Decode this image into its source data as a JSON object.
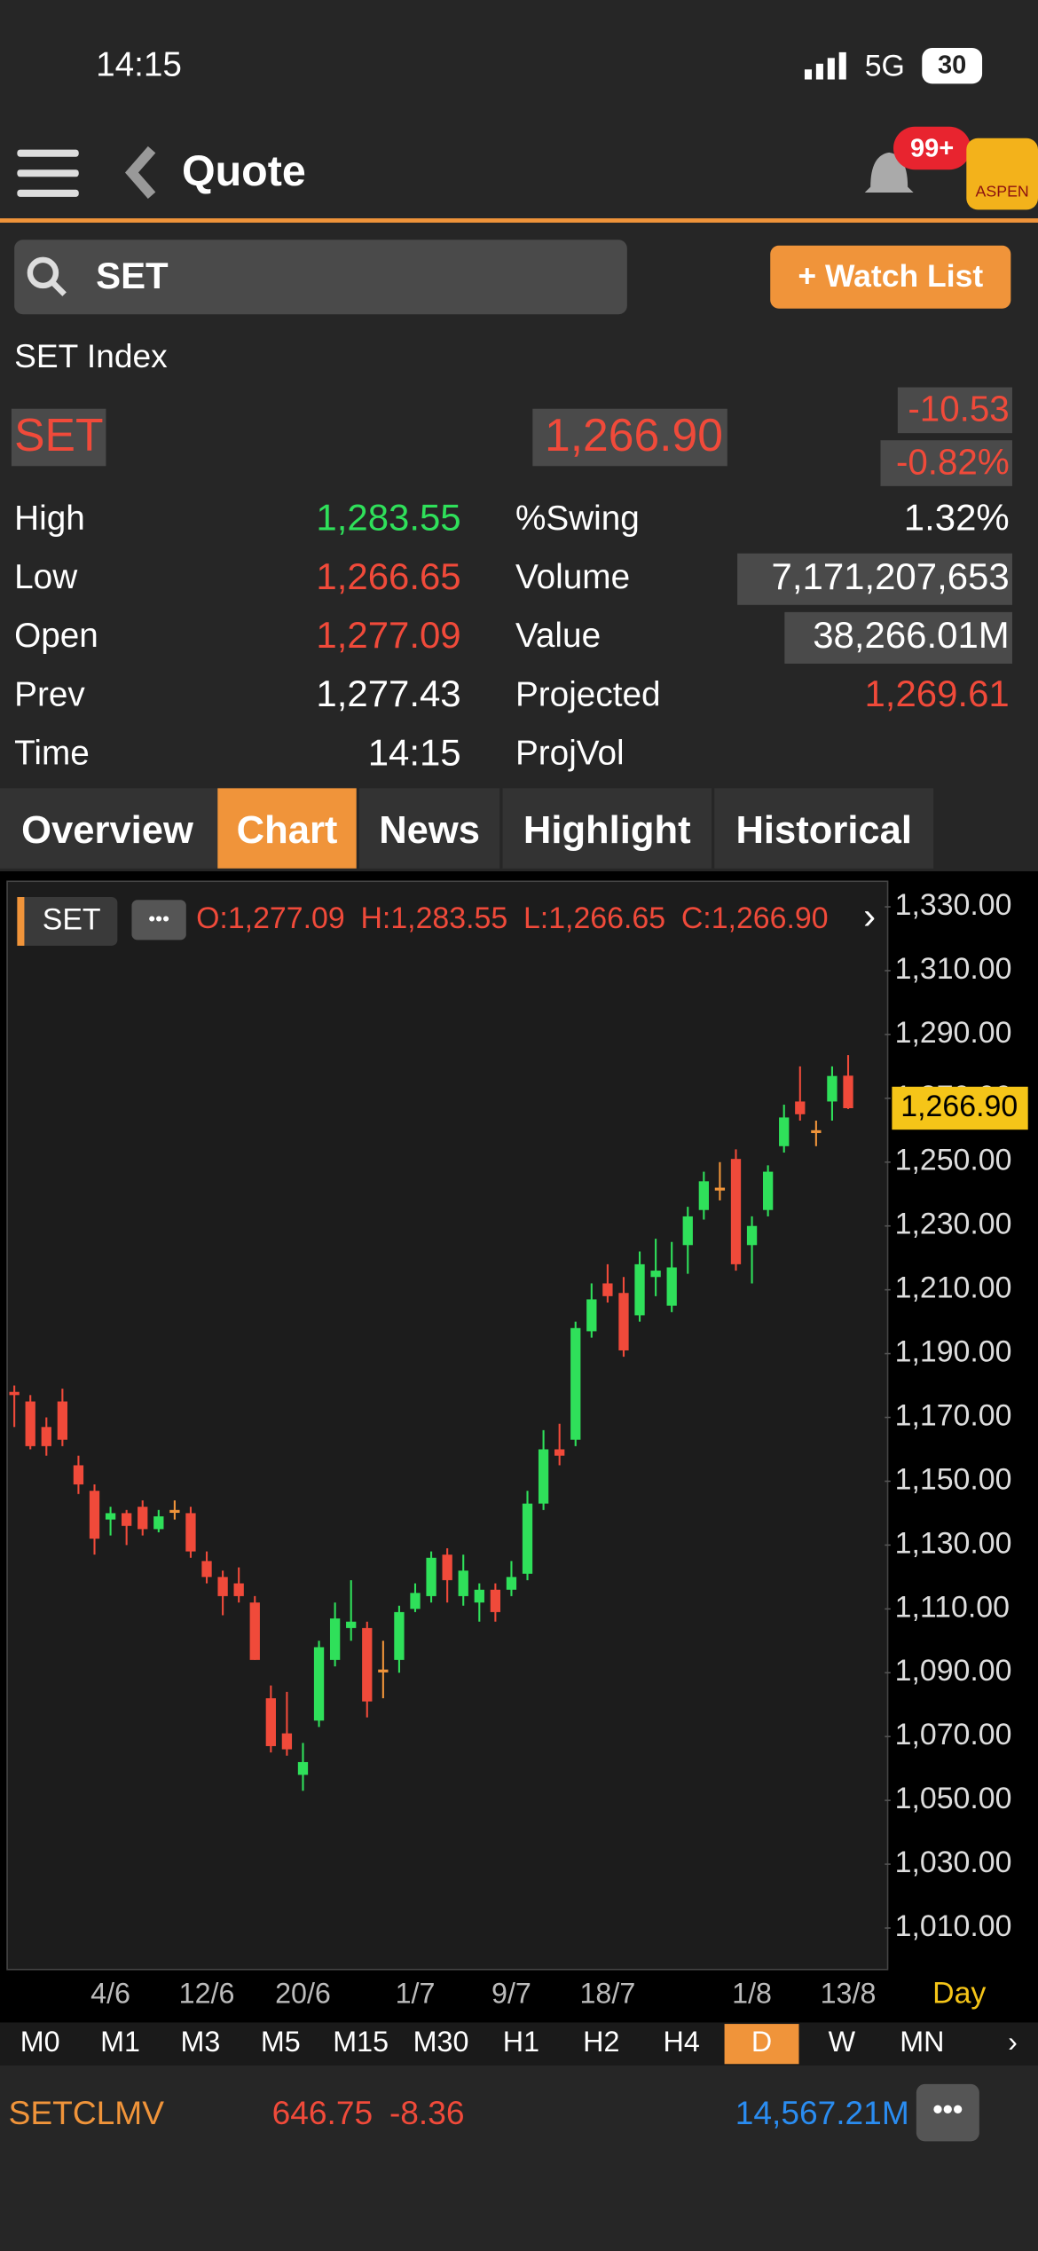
{
  "status_bar": {
    "time": "14:15",
    "network": "5G",
    "battery": "30"
  },
  "header": {
    "title": "Quote",
    "badge": "99+",
    "brand": "ASPEN"
  },
  "search": {
    "query": "SET",
    "button": "+ Watch List"
  },
  "quote": {
    "name": "SET Index",
    "symbol": "SET",
    "last": "1,266.90",
    "change": "-10.53",
    "change_pct": "-0.82%",
    "left_stats": [
      {
        "label": "High",
        "value": "1,283.55",
        "color": "#2fe05a"
      },
      {
        "label": "Low",
        "value": "1,266.65",
        "color": "#f04a3a"
      },
      {
        "label": "Open",
        "value": "1,277.09",
        "color": "#f04a3a"
      },
      {
        "label": "Prev",
        "value": "1,277.43",
        "color": "#ffffff"
      },
      {
        "label": "Time",
        "value": "14:15",
        "color": "#ffffff"
      }
    ],
    "right_stats": [
      {
        "label": "%Swing",
        "value": "1.32%",
        "color": "#ffffff"
      },
      {
        "label": "Volume",
        "value": "7,171,207,653",
        "color": "#ffffff"
      },
      {
        "label": "Value",
        "value": "38,266.01M",
        "color": "#ffffff"
      },
      {
        "label": "Projected",
        "value": "1,269.61",
        "color": "#f04a3a"
      },
      {
        "label": "ProjVol"
      }
    ]
  },
  "tabs": [
    "Overview",
    "Chart",
    "News",
    "Highlight",
    "Historical"
  ],
  "active_tab": 1,
  "chart_data": {
    "type": "candlestick",
    "symbol": "SET",
    "ohlc_labels": [
      "O:1,277.09",
      "H:1,283.55",
      "L:1,266.65",
      "C:1,266.90"
    ],
    "categories": [
      null,
      null,
      null,
      null,
      null,
      null,
      "4/6",
      null,
      null,
      null,
      null,
      null,
      "12/6",
      null,
      null,
      null,
      null,
      null,
      "20/6",
      null,
      null,
      null,
      null,
      null,
      null,
      "1/7",
      null,
      null,
      null,
      null,
      null,
      "9/7",
      null,
      null,
      null,
      null,
      null,
      "18/7",
      null,
      null,
      null,
      null,
      null,
      null,
      null,
      null,
      "1/8",
      null,
      null,
      null,
      null,
      null,
      "13/8"
    ],
    "open": [
      1178,
      1175,
      1167,
      1175,
      1155,
      1147,
      1138,
      1140,
      1142,
      1135,
      1141,
      1140,
      1125,
      1120,
      1118,
      1112,
      1082,
      1071,
      1058,
      1075,
      1094,
      1104,
      1104,
      1091,
      1094,
      1110,
      1114,
      1127,
      1114,
      1112,
      1116,
      1116,
      1121,
      1143,
      1160,
      1163,
      1197,
      1212,
      1209,
      1202,
      1214,
      1205,
      1224,
      1235,
      1242,
      1251,
      1224,
      1235,
      1255,
      1269,
      1260,
      1269,
      1277.09
    ],
    "high": [
      1180,
      1177,
      1170,
      1179,
      1158,
      1149,
      1142,
      1141,
      1144,
      1141,
      1144,
      1142,
      1128,
      1122,
      1123,
      1114,
      1086,
      1084,
      1068,
      1100,
      1112,
      1119,
      1106,
      1100,
      1111,
      1118,
      1128,
      1129,
      1127,
      1118,
      1118,
      1125,
      1147,
      1166,
      1168,
      1200,
      1212,
      1218,
      1214,
      1222,
      1226,
      1225,
      1236,
      1247,
      1250,
      1254,
      1233,
      1249,
      1268,
      1280,
      1263,
      1280,
      1283.55
    ],
    "low": [
      1167,
      1160,
      1158,
      1161,
      1146,
      1127,
      1133,
      1130,
      1133,
      1134,
      1138,
      1126,
      1118,
      1108,
      1112,
      1094,
      1065,
      1064,
      1053,
      1073,
      1092,
      1100,
      1076,
      1082,
      1090,
      1109,
      1112,
      1112,
      1111,
      1106,
      1106,
      1114,
      1119,
      1141,
      1155,
      1161,
      1195,
      1206,
      1189,
      1200,
      1208,
      1203,
      1215,
      1232,
      1238,
      1216,
      1212,
      1233,
      1253,
      1263,
      1255,
      1263,
      1266.65
    ],
    "close": [
      1177,
      1161,
      1161,
      1163,
      1149,
      1132,
      1140,
      1136,
      1135,
      1139,
      1141,
      1128,
      1120,
      1114,
      1114,
      1094,
      1067,
      1066,
      1062,
      1098,
      1107,
      1106,
      1081,
      1091,
      1109,
      1115,
      1126,
      1119,
      1122,
      1116,
      1109,
      1120,
      1143,
      1160,
      1158,
      1198,
      1207,
      1208,
      1191,
      1218,
      1216,
      1217,
      1233,
      1244,
      1242,
      1218,
      1230,
      1247,
      1264,
      1265,
      1260,
      1277,
      1266.9
    ],
    "up_color": "#2fe05a",
    "down_color": "#f04a3a",
    "flat_color": "#f0943a",
    "ylim": [
      997,
      1338
    ],
    "yticks": [
      {
        "value": 1330,
        "label": "1,330.00"
      },
      {
        "value": 1310,
        "label": "1,310.00"
      },
      {
        "value": 1290,
        "label": "1,290.00"
      },
      {
        "value": 1270,
        "label": "1,270.00"
      },
      {
        "value": 1250,
        "label": "1,250.00"
      },
      {
        "value": 1230,
        "label": "1,230.00"
      },
      {
        "value": 1210,
        "label": "1,210.00"
      },
      {
        "value": 1190,
        "label": "1,190.00"
      },
      {
        "value": 1170,
        "label": "1,170.00"
      },
      {
        "value": 1150,
        "label": "1,150.00"
      },
      {
        "value": 1130,
        "label": "1,130.00"
      },
      {
        "value": 1110,
        "label": "1,110.00"
      },
      {
        "value": 1090,
        "label": "1,090.00"
      },
      {
        "value": 1070,
        "label": "1,070.00"
      },
      {
        "value": 1050,
        "label": "1,050.00"
      },
      {
        "value": 1030,
        "label": "1,030.00"
      },
      {
        "value": 1010,
        "label": "1,010.00"
      }
    ],
    "last": {
      "value": 1266.9,
      "label": "1,266.90"
    },
    "period": "Day"
  },
  "timeframes": [
    "M0",
    "M1",
    "M3",
    "M5",
    "M15",
    "M30",
    "H1",
    "H2",
    "H4",
    "D",
    "W",
    "MN"
  ],
  "active_timeframe": 9,
  "ticker": {
    "symbol": "SETCLMV",
    "price": "646.75",
    "change": "-8.36",
    "value": "14,567.21M"
  }
}
